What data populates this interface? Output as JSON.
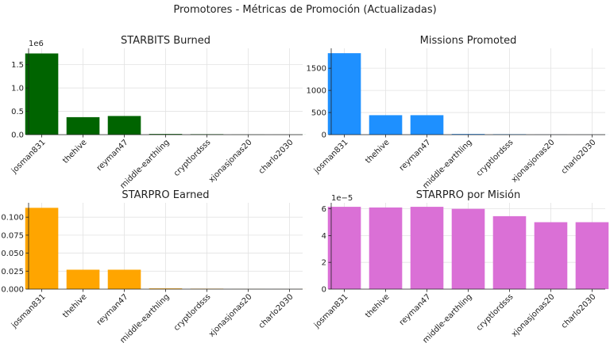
{
  "suptitle": "Promotores - Métricas de Promoción (Actualizadas)",
  "chart_data": [
    {
      "type": "bar",
      "title": "STARBITS Burned",
      "color": "#006400",
      "categories": [
        "josman831",
        "thehive",
        "reyman47",
        "middle-earthling",
        "cryptlordsss",
        "xjonasjonas20",
        "charlo2030"
      ],
      "values": [
        1740000,
        375000,
        400000,
        15000,
        10000,
        2000,
        1000
      ],
      "ylim": [
        0,
        1850000
      ],
      "yticks": [
        0,
        500000,
        1000000,
        1500000
      ],
      "ytick_labels": [
        "0.0",
        "0.5",
        "1.0",
        "1.5"
      ],
      "offset_text": "1e6",
      "grid": true
    },
    {
      "type": "bar",
      "title": "Missions Promoted",
      "color": "#1e90ff",
      "categories": [
        "josman831",
        "thehive",
        "reyman47",
        "middle-earthling",
        "cryptlordsss",
        "xjonasjonas20",
        "charlo2030"
      ],
      "values": [
        1840,
        440,
        440,
        15,
        10,
        2,
        1
      ],
      "ylim": [
        0,
        1950
      ],
      "yticks": [
        0,
        500,
        1000,
        1500
      ],
      "ytick_labels": [
        "0",
        "500",
        "1000",
        "1500"
      ],
      "offset_text": "",
      "grid": true
    },
    {
      "type": "bar",
      "title": "STARPRO Earned",
      "color": "#ffa500",
      "categories": [
        "josman831",
        "thehive",
        "reyman47",
        "middle-earthling",
        "cryptlordsss",
        "xjonasjonas20",
        "charlo2030"
      ],
      "values": [
        0.113,
        0.027,
        0.027,
        0.001,
        0.0006,
        0.0001,
        5e-05
      ],
      "ylim": [
        0,
        0.12
      ],
      "yticks": [
        0,
        0.025,
        0.05,
        0.075,
        0.1
      ],
      "ytick_labels": [
        "0.000",
        "0.025",
        "0.050",
        "0.075",
        "0.100"
      ],
      "offset_text": "",
      "grid": true
    },
    {
      "type": "bar",
      "title": "STARPRO por Misión",
      "color": "#da70d6",
      "categories": [
        "josman831",
        "thehive",
        "reyman47",
        "middle-earthling",
        "cryptlordsss",
        "xjonasjonas20",
        "charlo2030"
      ],
      "values": [
        6.15,
        6.1,
        6.15,
        6.0,
        5.45,
        5.0,
        5.0
      ],
      "ylim": [
        0,
        6.45
      ],
      "yticks": [
        0,
        2,
        4,
        6
      ],
      "ytick_labels": [
        "0",
        "2",
        "4",
        "6"
      ],
      "offset_text": "1e−5",
      "grid": true
    }
  ]
}
